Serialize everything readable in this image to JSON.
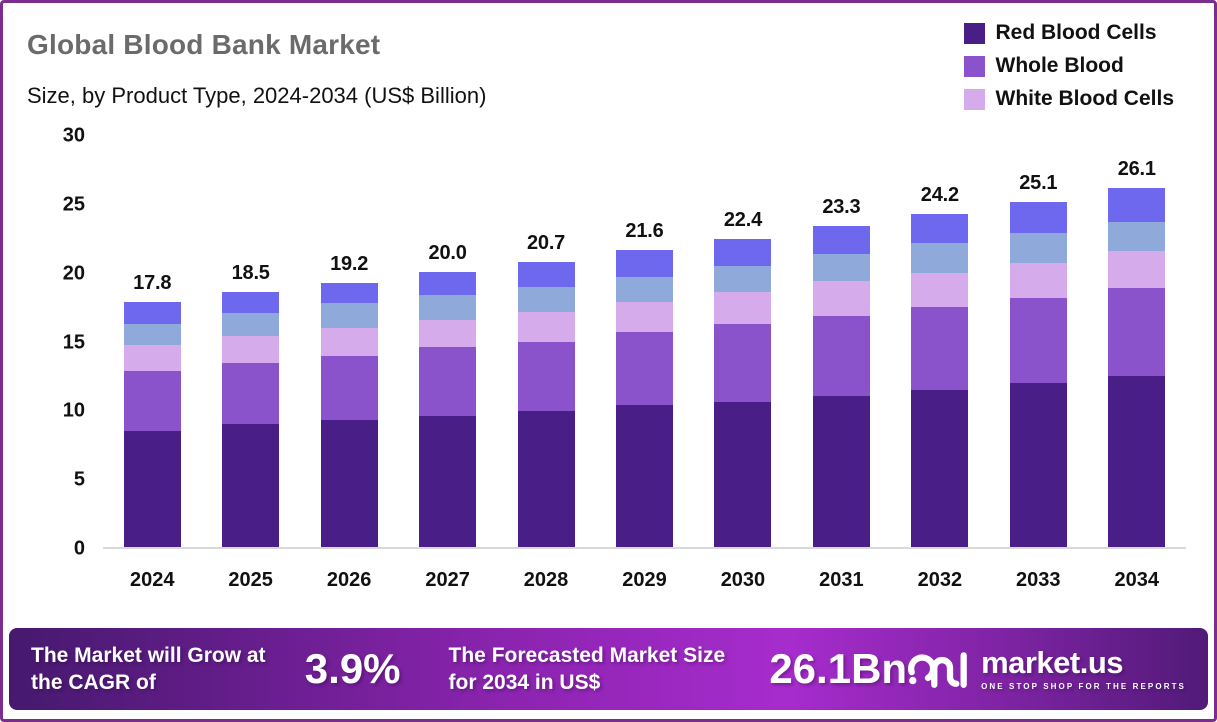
{
  "header": {
    "title": "Global Blood Bank Market",
    "subtitle": "Size, by Product Type, 2024-2034 (US$ Billion)"
  },
  "legend": {
    "position": "top-right",
    "items": [
      {
        "label": "Red Blood Cells",
        "color": "#4a1e87"
      },
      {
        "label": "Whole Blood",
        "color": "#8a53cb"
      },
      {
        "label": "White Blood Cells",
        "color": "#d5abec"
      }
    ]
  },
  "chart_data": {
    "type": "bar",
    "stacked": true,
    "title": "Global Blood Bank Market",
    "subtitle": "Size, by Product Type, 2024-2034 (US$ Billion)",
    "ylim": [
      0,
      30
    ],
    "y_ticks": [
      30,
      25,
      20,
      15,
      10,
      5,
      0
    ],
    "grid": false,
    "legend_position": "top-right",
    "categories": [
      "2024",
      "2025",
      "2026",
      "2027",
      "2028",
      "2029",
      "2030",
      "2031",
      "2032",
      "2033",
      "2034"
    ],
    "totals": [
      "17.8",
      "18.5",
      "19.2",
      "20.0",
      "20.7",
      "21.6",
      "22.4",
      "23.3",
      "24.2",
      "25.1",
      "26.1"
    ],
    "series_order": "bottom-to-top",
    "series": [
      {
        "name": "Red Blood Cells",
        "color": "#4a1e87",
        "values": [
          8.4,
          8.9,
          9.2,
          9.5,
          9.9,
          10.3,
          10.5,
          11.0,
          11.4,
          11.9,
          12.4
        ]
      },
      {
        "name": "Whole Blood",
        "color": "#8a53cb",
        "values": [
          4.4,
          4.5,
          4.7,
          5.0,
          5.0,
          5.3,
          5.7,
          5.8,
          6.0,
          6.2,
          6.4
        ]
      },
      {
        "name": "White Blood Cells",
        "color": "#d5abec",
        "values": [
          1.9,
          1.9,
          2.0,
          2.0,
          2.2,
          2.2,
          2.3,
          2.5,
          2.5,
          2.5,
          2.7
        ]
      },
      {
        "name": "",
        "color": "#8ea9da",
        "values": [
          1.5,
          1.7,
          1.8,
          1.8,
          1.8,
          1.8,
          1.9,
          2.0,
          2.2,
          2.2,
          2.1
        ]
      },
      {
        "name": "",
        "color": "#6e68ef",
        "values": [
          1.6,
          1.5,
          1.5,
          1.7,
          1.8,
          2.0,
          2.0,
          2.0,
          2.1,
          2.3,
          2.5
        ]
      }
    ]
  },
  "banner": {
    "cagr_label": "The Market will Grow at the CAGR of",
    "cagr_value": "3.9%",
    "forecast_label": "The Forecasted Market Size for 2034 in US$",
    "forecast_value": "26.1Bn",
    "logo_text": "market.us",
    "logo_tagline": "ONE STOP SHOP FOR THE REPORTS"
  }
}
